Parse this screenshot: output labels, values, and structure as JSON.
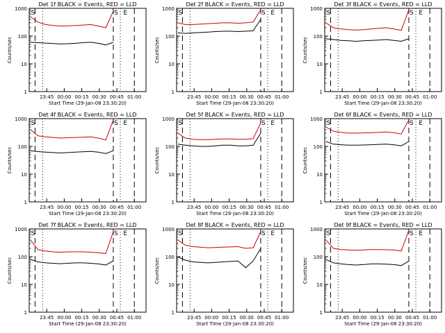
{
  "chart_data": [
    {
      "type": "line",
      "title": "Det 1f BLACK = Events, RED = LLD",
      "xlabel": "Start Time (29-Jan-08 23:30:20)",
      "ylabel": "Counts/sec",
      "ylim": [
        1,
        1000
      ],
      "yscale": "log",
      "x_tick_labels": [
        "23:45",
        "00:00",
        "00:15",
        "00:30",
        "00:45",
        "01:00"
      ],
      "y_tick_labels": [
        "1",
        "10",
        "100",
        "1000"
      ],
      "markers": [
        "S",
        "S",
        "E"
      ],
      "series": [
        {
          "name": "Events",
          "color": "#000000",
          "values": [
            60,
            58,
            56,
            54,
            52,
            53,
            55,
            58,
            60,
            55,
            48,
            60
          ]
        },
        {
          "name": "LLD",
          "color": "#cc0000",
          "values": [
            500,
            320,
            260,
            240,
            230,
            235,
            240,
            250,
            260,
            230,
            200,
            800
          ]
        }
      ]
    },
    {
      "type": "line",
      "title": "Det 2f BLACK = Events, RED = LLD",
      "xlabel": "Start Time (29-Jan-08 23:30:20)",
      "ylabel": "Counts/sec",
      "ylim": [
        1,
        1000
      ],
      "yscale": "log",
      "x_tick_labels": [
        "23:45",
        "00:00",
        "00:15",
        "00:30",
        "00:45",
        "01:00"
      ],
      "y_tick_labels": [
        "1",
        "10",
        "100",
        "1000"
      ],
      "markers": [
        "S",
        "S",
        "E"
      ],
      "series": [
        {
          "name": "Events",
          "color": "#000000",
          "values": [
            130,
            125,
            130,
            135,
            140,
            145,
            150,
            150,
            145,
            150,
            155,
            400
          ]
        },
        {
          "name": "LLD",
          "color": "#cc0000",
          "values": [
            300,
            260,
            260,
            270,
            280,
            290,
            300,
            300,
            290,
            300,
            320,
            900
          ]
        }
      ]
    },
    {
      "type": "line",
      "title": "Det 3f BLACK = Events, RED = LLD",
      "xlabel": "Start Time (29-Jan-08 23:30:20)",
      "ylabel": "Counts/sec",
      "ylim": [
        1,
        1000
      ],
      "yscale": "log",
      "x_tick_labels": [
        "23:45",
        "00:00",
        "00:15",
        "00:30",
        "00:45",
        "01:00"
      ],
      "y_tick_labels": [
        "1",
        "10",
        "100",
        "1000"
      ],
      "markers": [
        "S",
        "S",
        "E"
      ],
      "series": [
        {
          "name": "Events",
          "color": "#000000",
          "values": [
            80,
            75,
            70,
            68,
            65,
            68,
            70,
            72,
            75,
            70,
            65,
            80
          ]
        },
        {
          "name": "LLD",
          "color": "#cc0000",
          "values": [
            300,
            200,
            180,
            170,
            165,
            170,
            180,
            190,
            200,
            180,
            160,
            900
          ]
        }
      ]
    },
    {
      "type": "line",
      "title": "Det 4f BLACK = Events, RED = LLD",
      "xlabel": "Start Time (29-Jan-08 23:30:20)",
      "ylabel": "Counts/sec",
      "ylim": [
        1,
        1000
      ],
      "yscale": "log",
      "x_tick_labels": [
        "23:45",
        "00:00",
        "00:15",
        "00:30",
        "00:45",
        "01:00"
      ],
      "y_tick_labels": [
        "1",
        "10",
        "100",
        "1000"
      ],
      "markers": [
        "S",
        "S",
        "E"
      ],
      "series": [
        {
          "name": "Events",
          "color": "#000000",
          "values": [
            70,
            65,
            62,
            60,
            58,
            60,
            62,
            64,
            66,
            62,
            55,
            70
          ]
        },
        {
          "name": "LLD",
          "color": "#cc0000",
          "values": [
            400,
            240,
            220,
            210,
            200,
            205,
            210,
            215,
            220,
            200,
            170,
            900
          ]
        }
      ]
    },
    {
      "type": "line",
      "title": "Det 5f BLACK = Events, RED = LLD",
      "xlabel": "Start Time (29-Jan-08 23:30:20)",
      "ylabel": "Counts/sec",
      "ylim": [
        1,
        1000
      ],
      "yscale": "log",
      "x_tick_labels": [
        "23:45",
        "00:00",
        "00:15",
        "00:30",
        "00:45",
        "01:00"
      ],
      "y_tick_labels": [
        "1",
        "10",
        "100",
        "1000"
      ],
      "markers": [
        "S",
        "S",
        "E"
      ],
      "series": [
        {
          "name": "Events",
          "color": "#000000",
          "values": [
            120,
            110,
            105,
            100,
            100,
            105,
            110,
            110,
            105,
            105,
            110,
            300
          ]
        },
        {
          "name": "LLD",
          "color": "#cc0000",
          "values": [
            300,
            200,
            180,
            175,
            175,
            180,
            185,
            185,
            180,
            180,
            190,
            700
          ]
        }
      ]
    },
    {
      "type": "line",
      "title": "Det 6f BLACK = Events, RED = LLD",
      "xlabel": "Start Time (29-Jan-08 23:30:20)",
      "ylabel": "Counts/sec",
      "ylim": [
        1,
        1000
      ],
      "yscale": "log",
      "x_tick_labels": [
        "23:45",
        "00:00",
        "00:15",
        "00:30",
        "00:45",
        "01:00"
      ],
      "y_tick_labels": [
        "1",
        "10",
        "100",
        "1000"
      ],
      "markers": [
        "S",
        "S",
        "E"
      ],
      "series": [
        {
          "name": "Events",
          "color": "#000000",
          "values": [
            150,
            120,
            115,
            110,
            110,
            112,
            115,
            118,
            120,
            115,
            105,
            150
          ]
        },
        {
          "name": "LLD",
          "color": "#cc0000",
          "values": [
            500,
            350,
            320,
            300,
            300,
            305,
            310,
            320,
            330,
            310,
            280,
            900
          ]
        }
      ]
    },
    {
      "type": "line",
      "title": "Det 7f BLACK = Events, RED = LLD",
      "xlabel": "Start Time (29-Jan-08 23:30:20)",
      "ylabel": "Counts/sec",
      "ylim": [
        1,
        1000
      ],
      "yscale": "log",
      "x_tick_labels": [
        "23:45",
        "00:00",
        "00:15",
        "00:30",
        "00:45",
        "01:00"
      ],
      "y_tick_labels": [
        "1",
        "10",
        "100",
        "1000"
      ],
      "markers": [
        "S",
        "S",
        "E"
      ],
      "series": [
        {
          "name": "Events",
          "color": "#000000",
          "values": [
            80,
            65,
            60,
            58,
            56,
            58,
            60,
            60,
            58,
            55,
            50,
            70
          ]
        },
        {
          "name": "LLD",
          "color": "#cc0000",
          "values": [
            400,
            180,
            160,
            150,
            145,
            150,
            150,
            150,
            145,
            140,
            130,
            800
          ]
        }
      ]
    },
    {
      "type": "line",
      "title": "Det 8f BLACK = Events, RED = LLD",
      "xlabel": "Start Time (29-Jan-08 23:30:20)",
      "ylabel": "Counts/sec",
      "ylim": [
        1,
        1000
      ],
      "yscale": "log",
      "x_tick_labels": [
        "23:45",
        "00:00",
        "00:15",
        "00:30",
        "00:45",
        "01:00"
      ],
      "y_tick_labels": [
        "1",
        "10",
        "100",
        "1000"
      ],
      "markers": [
        "S",
        "S",
        "E"
      ],
      "series": [
        {
          "name": "Events",
          "color": "#000000",
          "values": [
            100,
            75,
            65,
            62,
            60,
            62,
            65,
            68,
            70,
            40,
            70,
            200
          ]
        },
        {
          "name": "LLD",
          "color": "#cc0000",
          "values": [
            400,
            260,
            230,
            220,
            210,
            215,
            220,
            225,
            230,
            200,
            210,
            800
          ]
        }
      ]
    },
    {
      "type": "line",
      "title": "Det 9f BLACK = Events, RED = LLD",
      "xlabel": "Start Time (29-Jan-08 23:30:20)",
      "ylabel": "Counts/sec",
      "ylim": [
        1,
        1000
      ],
      "yscale": "log",
      "x_tick_labels": [
        "23:45",
        "00:00",
        "00:15",
        "00:30",
        "00:45",
        "01:00"
      ],
      "y_tick_labels": [
        "1",
        "10",
        "100",
        "1000"
      ],
      "markers": [
        "S",
        "S",
        "E"
      ],
      "series": [
        {
          "name": "Events",
          "color": "#000000",
          "values": [
            80,
            60,
            55,
            52,
            50,
            52,
            55,
            55,
            54,
            52,
            48,
            70
          ]
        },
        {
          "name": "LLD",
          "color": "#cc0000",
          "values": [
            400,
            200,
            180,
            175,
            170,
            175,
            180,
            180,
            178,
            175,
            160,
            900
          ]
        }
      ]
    }
  ]
}
